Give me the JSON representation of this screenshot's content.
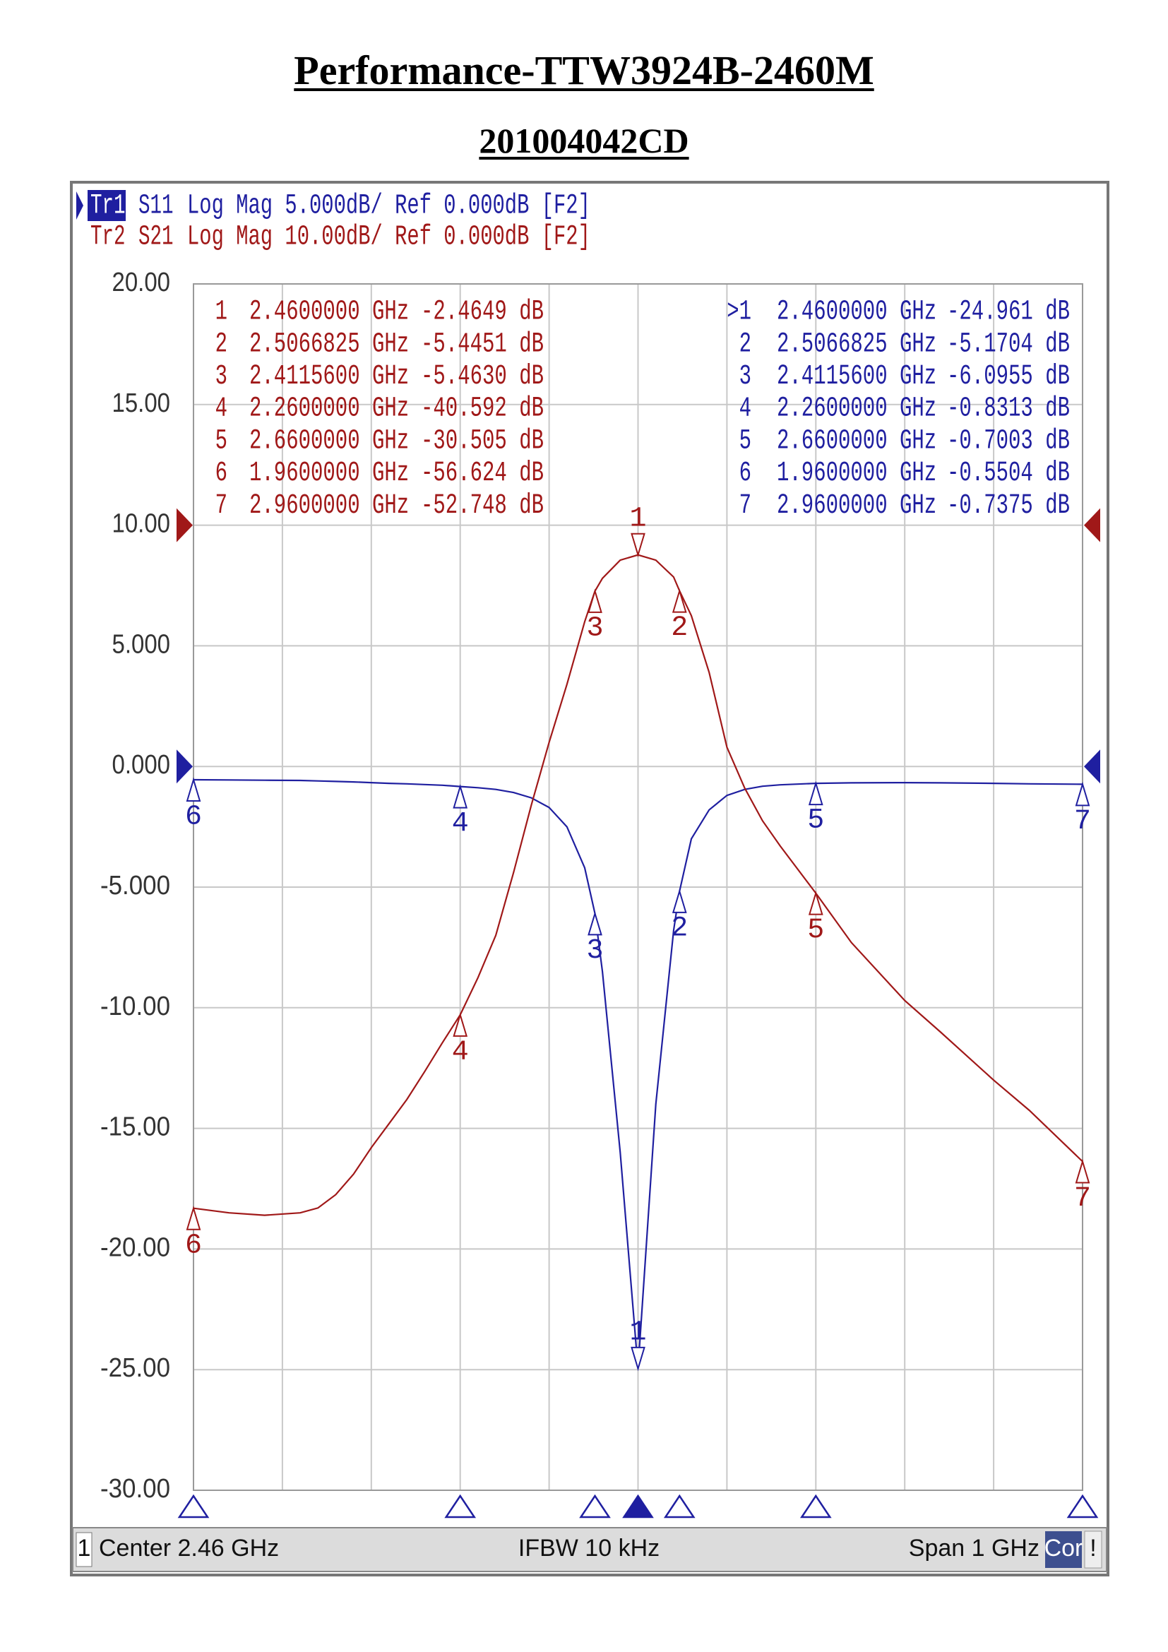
{
  "title": "Performance-TTW3924B-2460M",
  "subtitle": "201004042CD",
  "chart_data": {
    "type": "line",
    "xlim": [
      1.96,
      2.96
    ],
    "ylim": [
      -30,
      20
    ],
    "y2lim": [
      -80,
      20
    ],
    "yticks": [
      {
        "value": 20,
        "label": "20.00"
      },
      {
        "value": 15,
        "label": "15.00"
      },
      {
        "value": 10,
        "label": "10.00"
      },
      {
        "value": 5,
        "label": "5.000"
      },
      {
        "value": 0,
        "label": "0.000"
      },
      {
        "value": -5,
        "label": "-5.000"
      },
      {
        "value": -10,
        "label": "-10.00"
      },
      {
        "value": -15,
        "label": "-15.00"
      },
      {
        "value": -20,
        "label": "-20.00"
      },
      {
        "value": -25,
        "label": "-25.00"
      },
      {
        "value": -30,
        "label": "-30.00"
      }
    ],
    "grid": true,
    "x": [
      1.96,
      2.0,
      2.04,
      2.08,
      2.1,
      2.12,
      2.14,
      2.16,
      2.18,
      2.2,
      2.22,
      2.24,
      2.26,
      2.28,
      2.3,
      2.32,
      2.34,
      2.36,
      2.38,
      2.4,
      2.41156,
      2.42,
      2.44,
      2.46,
      2.48,
      2.5,
      2.5066825,
      2.52,
      2.54,
      2.56,
      2.58,
      2.6,
      2.62,
      2.66,
      2.7,
      2.76,
      2.8,
      2.86,
      2.9,
      2.96
    ],
    "series": [
      {
        "trace": "Tr1",
        "name": "S11",
        "header": "Log Mag 5.000dB/ Ref 0.000dB [F2]",
        "color": "#1f1fa0",
        "active": true,
        "ref": 0,
        "marker_table": "right",
        "values": [
          -0.55,
          -0.56,
          -0.57,
          -0.58,
          -0.6,
          -0.62,
          -0.64,
          -0.67,
          -0.7,
          -0.72,
          -0.75,
          -0.78,
          -0.8313,
          -0.88,
          -0.95,
          -1.08,
          -1.3,
          -1.7,
          -2.5,
          -4.2,
          -6.0955,
          -8.5,
          -16,
          -24.961,
          -14,
          -6.8,
          -5.1704,
          -3.0,
          -1.8,
          -1.2,
          -0.95,
          -0.82,
          -0.76,
          -0.7003,
          -0.68,
          -0.67,
          -0.68,
          -0.7,
          -0.72,
          -0.7375
        ],
        "markers": [
          {
            "id": "1",
            "row_label": ">1",
            "x": 2.46,
            "value": -24.961,
            "x_label": "2.4600000 GHz",
            "value_label": "-24.961 dB"
          },
          {
            "id": "2",
            "x": 2.5066825,
            "value": -5.1704,
            "x_label": "2.5066825 GHz",
            "value_label": "-5.1704 dB"
          },
          {
            "id": "3",
            "x": 2.41156,
            "value": -6.0955,
            "x_label": "2.4115600 GHz",
            "value_label": "-6.0955 dB"
          },
          {
            "id": "4",
            "x": 2.26,
            "value": -0.8313,
            "x_label": "2.2600000 GHz",
            "value_label": "-0.8313 dB"
          },
          {
            "id": "5",
            "x": 2.66,
            "value": -0.7003,
            "x_label": "2.6600000 GHz",
            "value_label": "-0.7003 dB"
          },
          {
            "id": "6",
            "x": 1.96,
            "value": -0.5504,
            "x_label": "1.9600000 GHz",
            "value_label": "-0.5504 dB"
          },
          {
            "id": "7",
            "x": 2.96,
            "value": -0.7375,
            "x_label": "2.9600000 GHz",
            "value_label": "-0.7375 dB"
          }
        ]
      },
      {
        "trace": "Tr2",
        "name": "S21",
        "header": "Log Mag 10.00dB/ Ref 0.000dB [F2]",
        "color": "#a01818",
        "active": false,
        "ref": 0,
        "axis": "y2",
        "marker_table": "left",
        "values": [
          -56.624,
          -57.0,
          -57.2,
          -57.0,
          -56.6,
          -55.5,
          -53.8,
          -51.6,
          -49.6,
          -47.6,
          -45.3,
          -42.9,
          -40.592,
          -37.5,
          -34,
          -28.8,
          -23.2,
          -18,
          -13.2,
          -8,
          -5.463,
          -4.4,
          -2.9,
          -2.4649,
          -2.9,
          -4.3,
          -5.4451,
          -7.5,
          -12.2,
          -18.4,
          -21.8,
          -24.5,
          -26.6,
          -30.505,
          -34.6,
          -39.4,
          -42,
          -46,
          -48.5,
          -52.748
        ],
        "markers": [
          {
            "id": "1",
            "x": 2.46,
            "value": -2.4649,
            "x_label": "2.4600000 GHz",
            "value_label": "-2.4649 dB"
          },
          {
            "id": "2",
            "x": 2.5066825,
            "value": -5.4451,
            "x_label": "2.5066825 GHz",
            "value_label": "-5.4451 dB"
          },
          {
            "id": "3",
            "x": 2.41156,
            "value": -5.463,
            "x_label": "2.4115600 GHz",
            "value_label": "-5.4630 dB"
          },
          {
            "id": "4",
            "x": 2.26,
            "value": -40.592,
            "x_label": "2.2600000 GHz",
            "value_label": "-40.592 dB"
          },
          {
            "id": "5",
            "x": 2.66,
            "value": -30.505,
            "x_label": "2.6600000 GHz",
            "value_label": "-30.505 dB"
          },
          {
            "id": "6",
            "x": 1.96,
            "value": -56.624,
            "x_label": "1.9600000 GHz",
            "value_label": "-56.624 dB"
          },
          {
            "id": "7",
            "x": 2.96,
            "value": -52.748,
            "x_label": "2.9600000 GHz",
            "value_label": "-52.748 dB"
          }
        ]
      }
    ]
  },
  "status_bar": {
    "channel": "1",
    "center": "Center 2.46 GHz",
    "ifbw": "IFBW 10 kHz",
    "span": "Span 1 GHz",
    "correction": "Cor",
    "alert": "!"
  }
}
